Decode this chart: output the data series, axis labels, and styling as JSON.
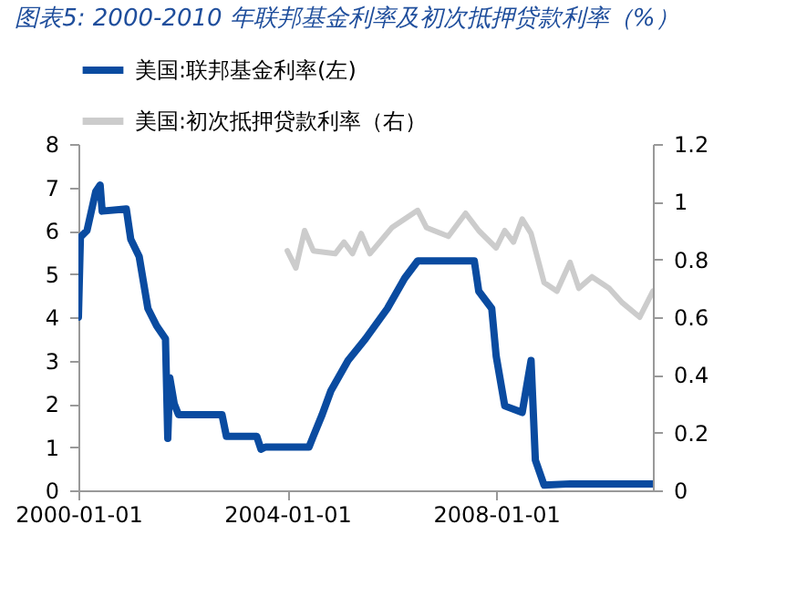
{
  "chart_data": {
    "type": "line",
    "title": "图表5:  2000-2010 年联邦基金利率及初次抵押贷款利率（%）",
    "series": [
      {
        "name": "美国:联邦基金利率(左)",
        "color": "#0a4ba0",
        "x": [
          "2000-01",
          "2000-01-15",
          "2000-03",
          "2000-05",
          "2000-06",
          "2000-06-15",
          "2000-12",
          "2001-01",
          "2001-03",
          "2001-05",
          "2001-07",
          "2001-09",
          "2001-09-17",
          "2001-10",
          "2001-11",
          "2001-12",
          "2002-10",
          "2002-11",
          "2003-06",
          "2003-07",
          "2003-08",
          "2004-06",
          "2004-07",
          "2004-09",
          "2004-11",
          "2005-03",
          "2005-07",
          "2005-12",
          "2006-04",
          "2006-07",
          "2007-08",
          "2007-09",
          "2007-12",
          "2008-01",
          "2008-03",
          "2008-07",
          "2008-09",
          "2008-10",
          "2008-12",
          "2009-06",
          "2010-06",
          "2011-01"
        ],
        "values": [
          4.0,
          5.85,
          6.0,
          6.9,
          7.05,
          6.45,
          6.5,
          5.8,
          5.4,
          4.2,
          3.8,
          3.5,
          1.2,
          2.6,
          2.0,
          1.75,
          1.75,
          1.25,
          1.25,
          0.95,
          1.0,
          1.0,
          1.25,
          1.75,
          2.3,
          3.0,
          3.5,
          4.2,
          4.9,
          5.3,
          5.3,
          4.6,
          4.2,
          3.1,
          1.95,
          1.8,
          3.0,
          0.7,
          0.12,
          0.15,
          0.15,
          0.15
        ]
      },
      {
        "name": "美国:初次抵押贷款利率（右）",
        "color": "#cccccc",
        "axis": "y2",
        "x": [
          "2004-01",
          "2004-03",
          "2004-05",
          "2004-07",
          "2004-12",
          "2005-02",
          "2005-04",
          "2005-06",
          "2005-08",
          "2006-01",
          "2006-07",
          "2006-09",
          "2007-02",
          "2007-06",
          "2007-09",
          "2008-01",
          "2008-03",
          "2008-05",
          "2008-07",
          "2008-09",
          "2008-12",
          "2009-03",
          "2009-06",
          "2009-08",
          "2009-11",
          "2010-03",
          "2010-06",
          "2010-10",
          "2011-01"
        ],
        "values": [
          0.83,
          0.77,
          0.9,
          0.83,
          0.82,
          0.86,
          0.82,
          0.89,
          0.82,
          0.91,
          0.97,
          0.91,
          0.88,
          0.96,
          0.9,
          0.84,
          0.9,
          0.86,
          0.94,
          0.89,
          0.72,
          0.69,
          0.79,
          0.7,
          0.74,
          0.7,
          0.65,
          0.6,
          0.69
        ]
      }
    ],
    "xlim": [
      "2000-01-01",
      "2011-01-01"
    ],
    "xticks": [
      "2000-01-01",
      "2004-01-01",
      "2008-01-01"
    ],
    "ylim": [
      0,
      8
    ],
    "yticks": [
      0,
      1,
      2,
      3,
      4,
      5,
      6,
      7,
      8
    ],
    "y2lim": [
      0,
      1.2
    ],
    "y2ticks": [
      0,
      0.2,
      0.4,
      0.6,
      0.8,
      1,
      1.2
    ],
    "grid": false,
    "legend": "top"
  }
}
